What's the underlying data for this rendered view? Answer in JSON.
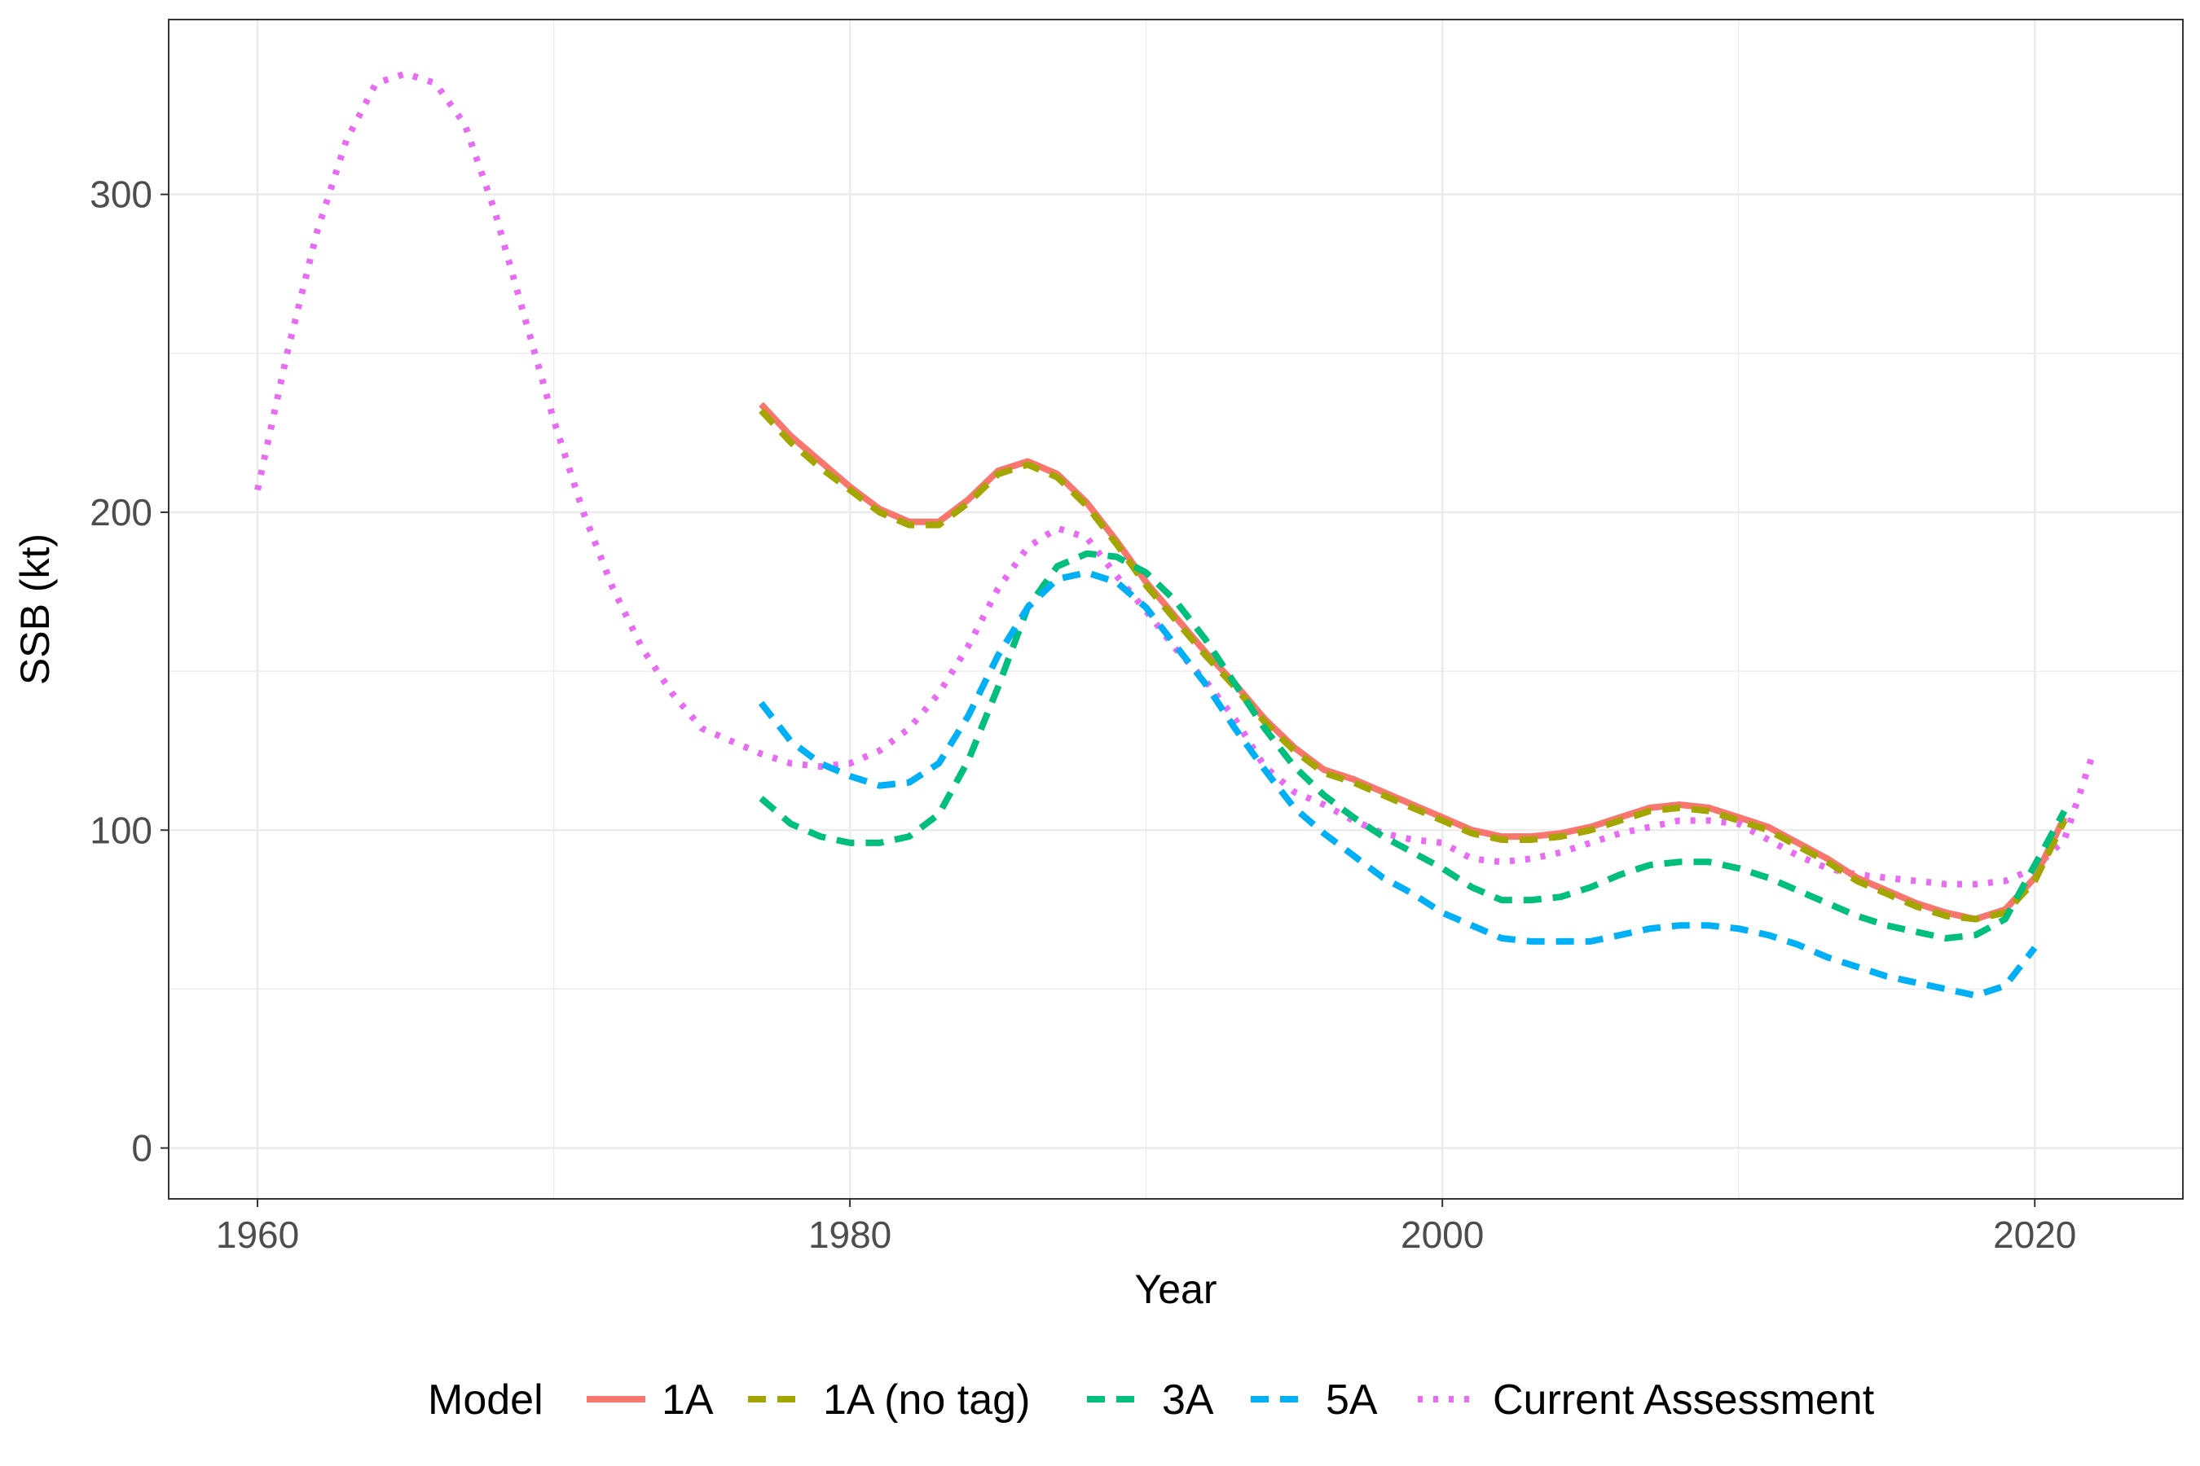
{
  "chart_data": {
    "type": "line",
    "title": "",
    "xlabel": "Year",
    "ylabel": "SSB (kt)",
    "xlim": [
      1957,
      2025
    ],
    "ylim": [
      -16,
      355
    ],
    "x_ticks": [
      1960,
      1980,
      2000,
      2020
    ],
    "x_tick_labels": [
      "1960",
      "1980",
      "2000",
      "2020"
    ],
    "x_minor_ticks": [
      1970,
      1990,
      2010
    ],
    "y_ticks": [
      0,
      100,
      200,
      300
    ],
    "y_tick_labels": [
      "0",
      "100",
      "200",
      "300"
    ],
    "y_minor_ticks": [
      50,
      150,
      250
    ],
    "grid": true,
    "legend_title": "Model",
    "legend_position": "bottom",
    "series": [
      {
        "name": "Current Assessment",
        "color": "#E76BF3",
        "dash": "dotted",
        "x": [
          1960,
          1961,
          1962,
          1963,
          1964,
          1965,
          1966,
          1967,
          1968,
          1969,
          1970,
          1971,
          1972,
          1973,
          1974,
          1975,
          1976,
          1977,
          1978,
          1979,
          1980,
          1981,
          1982,
          1983,
          1984,
          1985,
          1986,
          1987,
          1988,
          1989,
          1990,
          1991,
          1992,
          1993,
          1994,
          1995,
          1996,
          1997,
          1998,
          1999,
          2000,
          2001,
          2002,
          2003,
          2004,
          2005,
          2006,
          2007,
          2008,
          2009,
          2010,
          2011,
          2012,
          2013,
          2014,
          2015,
          2016,
          2017,
          2018,
          2019,
          2020,
          2021,
          2022
        ],
        "values": [
          207,
          250,
          288,
          317,
          335,
          338,
          335,
          322,
          295,
          262,
          229,
          200,
          176,
          157,
          143,
          132,
          128,
          124,
          121,
          120,
          121,
          125,
          132,
          143,
          158,
          176,
          189,
          195,
          192,
          180,
          169,
          157,
          147,
          135,
          120,
          112,
          108,
          103,
          99,
          97,
          96,
          91,
          90,
          91,
          93,
          96,
          99,
          101,
          103,
          103,
          102,
          97,
          92,
          88,
          86,
          85,
          84,
          83,
          83,
          84,
          88,
          97,
          125
        ]
      },
      {
        "name": "1A",
        "color": "#F8766D",
        "dash": "solid",
        "x": [
          1977,
          1978,
          1979,
          1980,
          1981,
          1982,
          1983,
          1984,
          1985,
          1986,
          1987,
          1988,
          1989,
          1990,
          1991,
          1992,
          1993,
          1994,
          1995,
          1996,
          1997,
          1998,
          1999,
          2000,
          2001,
          2002,
          2003,
          2004,
          2005,
          2006,
          2007,
          2008,
          2009,
          2010,
          2011,
          2012,
          2013,
          2014,
          2015,
          2016,
          2017,
          2018,
          2019,
          2020,
          2021
        ],
        "values": [
          234,
          224,
          216,
          208,
          201,
          197,
          197,
          204,
          213,
          216,
          212,
          203,
          191,
          178,
          167,
          156,
          146,
          135,
          126,
          119,
          116,
          112,
          108,
          104,
          100,
          98,
          98,
          99,
          101,
          104,
          107,
          108,
          107,
          104,
          101,
          96,
          91,
          85,
          81,
          77,
          74,
          72,
          75,
          85,
          104
        ]
      },
      {
        "name": "1A (no tag)",
        "color": "#A3A500",
        "dash": "dashed",
        "x": [
          1977,
          1978,
          1979,
          1980,
          1981,
          1982,
          1983,
          1984,
          1985,
          1986,
          1987,
          1988,
          1989,
          1990,
          1991,
          1992,
          1993,
          1994,
          1995,
          1996,
          1997,
          1998,
          1999,
          2000,
          2001,
          2002,
          2003,
          2004,
          2005,
          2006,
          2007,
          2008,
          2009,
          2010,
          2011,
          2012,
          2013,
          2014,
          2015,
          2016,
          2017,
          2018,
          2019,
          2020,
          2021
        ],
        "values": [
          232,
          222,
          214,
          207,
          200,
          196,
          196,
          203,
          212,
          215,
          211,
          202,
          190,
          177,
          166,
          155,
          145,
          134,
          125,
          118,
          115,
          111,
          107,
          103,
          99,
          97,
          97,
          98,
          100,
          103,
          106,
          107,
          106,
          103,
          100,
          95,
          90,
          84,
          80,
          76,
          73,
          72,
          74,
          84,
          103
        ]
      },
      {
        "name": "3A",
        "color": "#00BF7D",
        "dash": "dashed",
        "x": [
          1977,
          1978,
          1979,
          1980,
          1981,
          1982,
          1983,
          1984,
          1985,
          1986,
          1987,
          1988,
          1989,
          1990,
          1991,
          1992,
          1993,
          1994,
          1995,
          1996,
          1997,
          1998,
          1999,
          2000,
          2001,
          2002,
          2003,
          2004,
          2005,
          2006,
          2007,
          2008,
          2009,
          2010,
          2011,
          2012,
          2013,
          2014,
          2015,
          2016,
          2017,
          2018,
          2019,
          2020,
          2021
        ],
        "values": [
          110,
          102,
          98,
          96,
          96,
          98,
          105,
          122,
          145,
          170,
          183,
          187,
          186,
          181,
          172,
          160,
          146,
          132,
          120,
          111,
          104,
          98,
          93,
          88,
          82,
          78,
          78,
          79,
          82,
          86,
          89,
          90,
          90,
          88,
          85,
          81,
          77,
          73,
          70,
          68,
          66,
          67,
          72,
          89,
          106
        ]
      },
      {
        "name": "5A",
        "color": "#00B0F6",
        "dash": "dashed",
        "x": [
          1977,
          1978,
          1979,
          1980,
          1981,
          1982,
          1983,
          1984,
          1985,
          1986,
          1987,
          1988,
          1989,
          1990,
          1991,
          1992,
          1993,
          1994,
          1995,
          1996,
          1997,
          1998,
          1999,
          2000,
          2001,
          2002,
          2003,
          2004,
          2005,
          2006,
          2007,
          2008,
          2009,
          2010,
          2011,
          2012,
          2013,
          2014,
          2015,
          2016,
          2017,
          2018,
          2019,
          2020
        ],
        "values": [
          140,
          128,
          121,
          117,
          114,
          115,
          121,
          136,
          155,
          170,
          179,
          181,
          178,
          170,
          158,
          146,
          132,
          119,
          107,
          99,
          92,
          85,
          80,
          74,
          70,
          66,
          65,
          65,
          65,
          67,
          69,
          70,
          70,
          69,
          67,
          64,
          60,
          57,
          54,
          52,
          50,
          48,
          51,
          63
        ]
      }
    ]
  }
}
